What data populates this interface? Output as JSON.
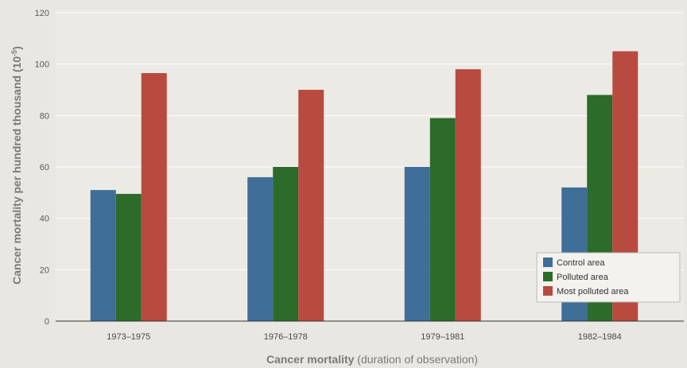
{
  "chart_data": {
    "type": "bar",
    "categories": [
      "1973–1975",
      "1976–1978",
      "1979–1981",
      "1982–1984"
    ],
    "series": [
      {
        "name": "Control area",
        "color": "#3f6e98",
        "values": [
          51,
          56,
          60,
          52
        ]
      },
      {
        "name": "Polluted area",
        "color": "#2c6b2a",
        "values": [
          49.5,
          60,
          79,
          88
        ]
      },
      {
        "name": "Most polluted area",
        "color": "#b84a3f",
        "values": [
          96.5,
          90,
          98,
          105
        ]
      }
    ],
    "title": "",
    "xlabel_bold": "Cancer mortality",
    "xlabel_rest": " (duration of observation)",
    "ylabel": "Cancer mortality per hundred thousand (10",
    "ylabel_sup": "-5",
    "ylabel_end": ")",
    "ylim": [
      0,
      120
    ],
    "yticks": [
      0,
      20,
      40,
      60,
      80,
      100,
      120
    ],
    "grid": true,
    "legend_position": "bottom-right"
  }
}
